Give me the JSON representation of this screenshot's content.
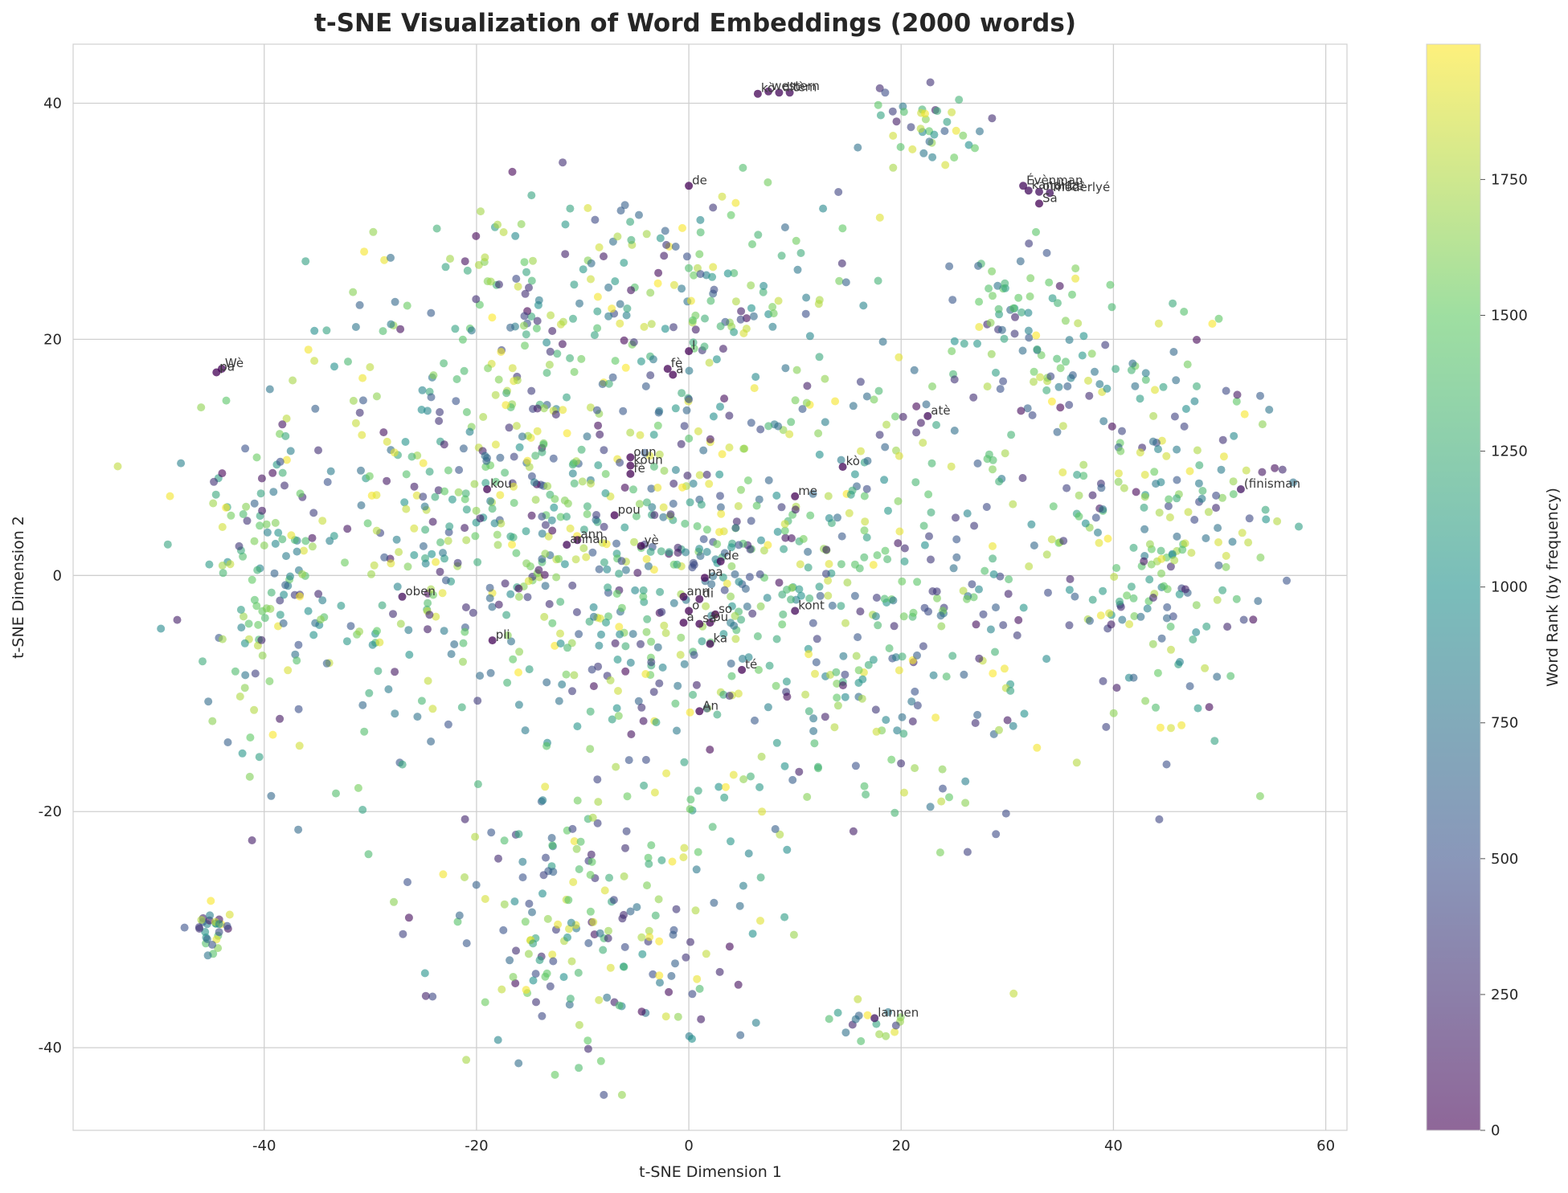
{
  "chart_data": {
    "type": "scatter",
    "title": "t-SNE Visualization of Word Embeddings (2000 words)",
    "xlabel": "t-SNE Dimension 1",
    "ylabel": "t-SNE Dimension 2",
    "xlim": [
      -58,
      62
    ],
    "ylim": [
      -47,
      45
    ],
    "xticks": [
      -40,
      -20,
      0,
      20,
      40,
      60
    ],
    "yticks": [
      -40,
      -20,
      0,
      20,
      40
    ],
    "grid": true,
    "point_count": 2000,
    "colorbar": {
      "label": "Word Rank (by frequency)",
      "colormap": "viridis",
      "range": [
        0,
        1999
      ],
      "ticks": [
        0,
        250,
        500,
        750,
        1000,
        1250,
        1500,
        1750
      ],
      "colors": [
        "#440154",
        "#3b528b",
        "#21918c",
        "#5ec962",
        "#fde725"
      ]
    },
    "dense_regions": [
      {
        "cx": -20,
        "cy": 5,
        "rx": 18,
        "ry": 18,
        "n": 420
      },
      {
        "cx": 0,
        "cy": 0,
        "rx": 16,
        "ry": 22,
        "n": 380
      },
      {
        "cx": 20,
        "cy": 0,
        "rx": 16,
        "ry": 20,
        "n": 300
      },
      {
        "cx": 45,
        "cy": 5,
        "rx": 10,
        "ry": 16,
        "n": 230
      },
      {
        "cx": -10,
        "cy": -30,
        "rx": 12,
        "ry": 10,
        "n": 180
      },
      {
        "cx": -5,
        "cy": 25,
        "rx": 18,
        "ry": 8,
        "n": 160
      },
      {
        "cx": -40,
        "cy": 0,
        "rx": 6,
        "ry": 14,
        "n": 120
      },
      {
        "cx": 32,
        "cy": 20,
        "rx": 6,
        "ry": 8,
        "n": 80
      },
      {
        "cx": 22,
        "cy": 38,
        "rx": 5,
        "ry": 3,
        "n": 40
      },
      {
        "cx": -45,
        "cy": -30,
        "rx": 2,
        "ry": 1.5,
        "n": 30
      },
      {
        "cx": 17,
        "cy": -38,
        "rx": 3,
        "ry": 2,
        "n": 20
      },
      {
        "cx": -50,
        "cy": 2,
        "rx": 2,
        "ry": 3,
        "n": 10
      },
      {
        "cx": -45,
        "cy": -14,
        "rx": 2,
        "ry": 4,
        "n": 20
      },
      {
        "cx": 30,
        "cy": -8,
        "rx": 10,
        "ry": 6,
        "n": 10
      }
    ],
    "labeled_points": [
      {
        "word": "western",
        "x": 7.5,
        "y": 41,
        "rank": 30
      },
      {
        "word": "dlo",
        "x": 8.5,
        "y": 40.9,
        "rank": 40
      },
      {
        "word": "tèm",
        "x": 9.5,
        "y": 40.9,
        "rank": 50
      },
      {
        "word": "kò",
        "x": 6.5,
        "y": 40.8,
        "rank": 20
      },
      {
        "word": "de",
        "x": 0,
        "y": 33,
        "rank": 10
      },
      {
        "word": "Évènman",
        "x": 31.5,
        "y": 33,
        "rank": 60
      },
      {
        "word": "kandida",
        "x": 32,
        "y": 32.6,
        "rank": 70
      },
      {
        "word": "otorizé",
        "x": 33,
        "y": 32.5,
        "rank": 80
      },
      {
        "word": "modèrlyé",
        "x": 34,
        "y": 32.4,
        "rank": 90
      },
      {
        "word": "Sa",
        "x": 33,
        "y": 31.5,
        "rank": 15
      },
      {
        "word": "Wè",
        "x": -44,
        "y": 17.5,
        "rank": 25
      },
      {
        "word": "pa",
        "x": -44.5,
        "y": 17.2,
        "rank": 5
      },
      {
        "word": "fè",
        "x": -2,
        "y": 17.5,
        "rank": 12
      },
      {
        "word": "a",
        "x": -1.5,
        "y": 17,
        "rank": 3
      },
      {
        "word": "l",
        "x": 0,
        "y": 19,
        "rank": 8
      },
      {
        "word": "atè",
        "x": 22.5,
        "y": 13.5,
        "rank": 65
      },
      {
        "word": "oun",
        "x": -5.5,
        "y": 10,
        "rank": 6
      },
      {
        "word": "koun",
        "x": -5.5,
        "y": 9.3,
        "rank": 14
      },
      {
        "word": "fè",
        "x": -5.5,
        "y": 8.6,
        "rank": 22
      },
      {
        "word": "kò",
        "x": 14.5,
        "y": 9.2,
        "rank": 35
      },
      {
        "word": "(finisman",
        "x": 52,
        "y": 7.3,
        "rank": 120
      },
      {
        "word": "kou",
        "x": -19,
        "y": 7.3,
        "rank": 28
      },
      {
        "word": "me",
        "x": 10,
        "y": 6.7,
        "rank": 18
      },
      {
        "word": "pou",
        "x": -7,
        "y": 5.1,
        "rank": 9
      },
      {
        "word": "ann",
        "x": -10.5,
        "y": 3,
        "rank": 33
      },
      {
        "word": "annan",
        "x": -11.5,
        "y": 2.6,
        "rank": 44
      },
      {
        "word": "yè",
        "x": -4.5,
        "y": 2.5,
        "rank": 26
      },
      {
        "word": "de",
        "x": 3,
        "y": 1.2,
        "rank": 11
      },
      {
        "word": "pa",
        "x": 1.5,
        "y": -0.2,
        "rank": 4
      },
      {
        "word": "oben",
        "x": -27,
        "y": -1.8,
        "rank": 75
      },
      {
        "word": "ann",
        "x": -0.5,
        "y": -1.8,
        "rank": 7
      },
      {
        "word": "di",
        "x": 1,
        "y": -2,
        "rank": 13
      },
      {
        "word": "kont",
        "x": 10,
        "y": -3,
        "rank": 48
      },
      {
        "word": "so",
        "x": 2.5,
        "y": -3.3,
        "rank": 16
      },
      {
        "word": "o",
        "x": 0,
        "y": -3,
        "rank": 2
      },
      {
        "word": "a",
        "x": -0.5,
        "y": -4,
        "rank": 1
      },
      {
        "word": "sa",
        "x": 1,
        "y": -4.1,
        "rank": 19
      },
      {
        "word": "ou",
        "x": 2,
        "y": -4,
        "rank": 21
      },
      {
        "word": "pli",
        "x": -18.5,
        "y": -5.5,
        "rank": 29
      },
      {
        "word": "ka",
        "x": 2,
        "y": -5.8,
        "rank": 23
      },
      {
        "word": "té",
        "x": 5,
        "y": -8,
        "rank": 17
      },
      {
        "word": "An",
        "x": 1,
        "y": -11.5,
        "rank": 27
      },
      {
        "word": "lannen",
        "x": 17.5,
        "y": -37.5,
        "rank": 130
      }
    ]
  }
}
